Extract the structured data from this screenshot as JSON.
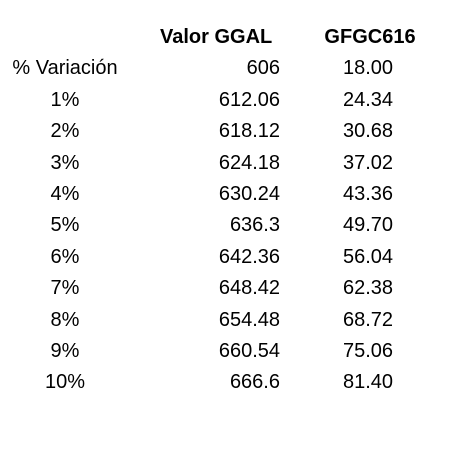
{
  "table": {
    "headers": [
      "",
      "Valor GGAL",
      "GFGC616"
    ],
    "rows": [
      [
        "% Variación",
        "606",
        "18.00"
      ],
      [
        "1%",
        "612.06",
        "24.34"
      ],
      [
        "2%",
        "618.12",
        "30.68"
      ],
      [
        "3%",
        "624.18",
        "37.02"
      ],
      [
        "4%",
        "630.24",
        "43.36"
      ],
      [
        "5%",
        "636.3",
        "49.70"
      ],
      [
        "6%",
        "642.36",
        "56.04"
      ],
      [
        "7%",
        "648.42",
        "62.38"
      ],
      [
        "8%",
        "654.48",
        "68.72"
      ],
      [
        "9%",
        "660.54",
        "75.06"
      ],
      [
        "10%",
        "666.6",
        "81.40"
      ]
    ]
  }
}
